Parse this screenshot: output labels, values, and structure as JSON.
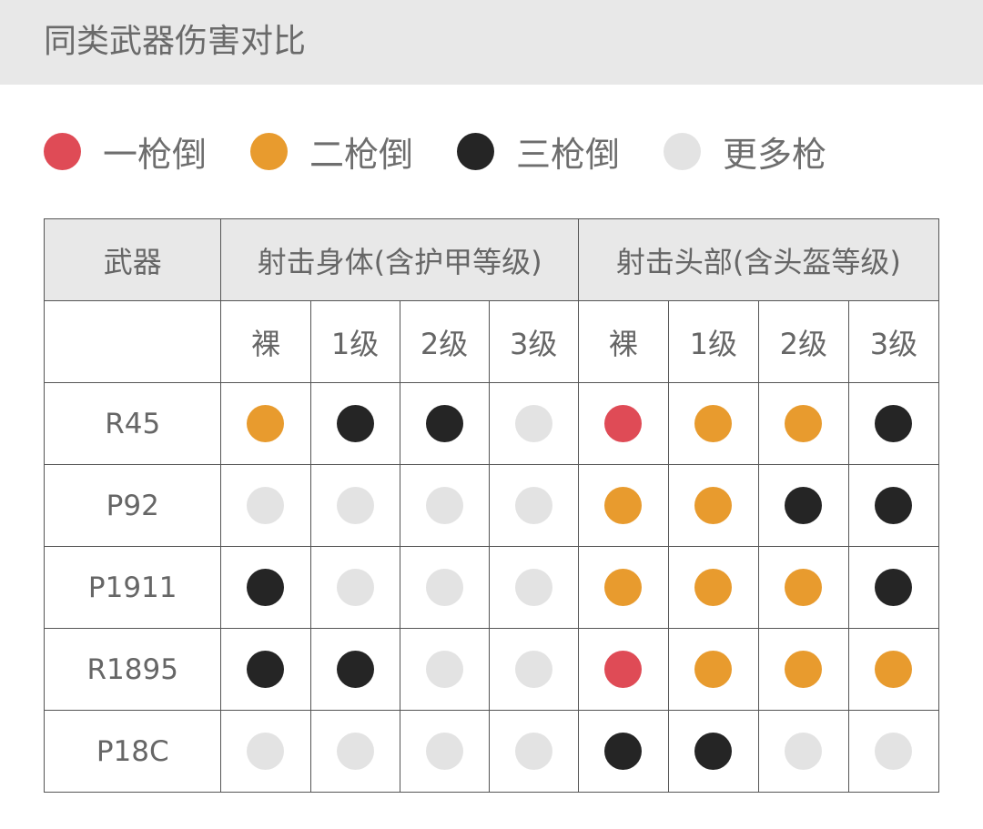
{
  "title": "同类武器伤害对比",
  "colors": {
    "one": "#df4b56",
    "two": "#e89b2e",
    "three": "#252525",
    "more": "#e3e3e3"
  },
  "legend": [
    {
      "key": "one",
      "label": "一枪倒"
    },
    {
      "key": "two",
      "label": "二枪倒"
    },
    {
      "key": "three",
      "label": "三枪倒"
    },
    {
      "key": "more",
      "label": "更多枪"
    }
  ],
  "table": {
    "header": {
      "weapon": "武器",
      "body": "射击身体(含护甲等级)",
      "head": "射击头部(含头盔等级)"
    },
    "subheader": [
      "裸",
      "1级",
      "2级",
      "3级",
      "裸",
      "1级",
      "2级",
      "3级"
    ],
    "rows": [
      {
        "weapon": "R45",
        "cells": [
          "two",
          "three",
          "three",
          "more",
          "one",
          "two",
          "two",
          "three"
        ]
      },
      {
        "weapon": "P92",
        "cells": [
          "more",
          "more",
          "more",
          "more",
          "two",
          "two",
          "three",
          "three"
        ]
      },
      {
        "weapon": "P1911",
        "cells": [
          "three",
          "more",
          "more",
          "more",
          "two",
          "two",
          "two",
          "three"
        ]
      },
      {
        "weapon": "R1895",
        "cells": [
          "three",
          "three",
          "more",
          "more",
          "one",
          "two",
          "two",
          "two"
        ]
      },
      {
        "weapon": "P18C",
        "cells": [
          "more",
          "more",
          "more",
          "more",
          "three",
          "three",
          "more",
          "more"
        ]
      }
    ]
  }
}
